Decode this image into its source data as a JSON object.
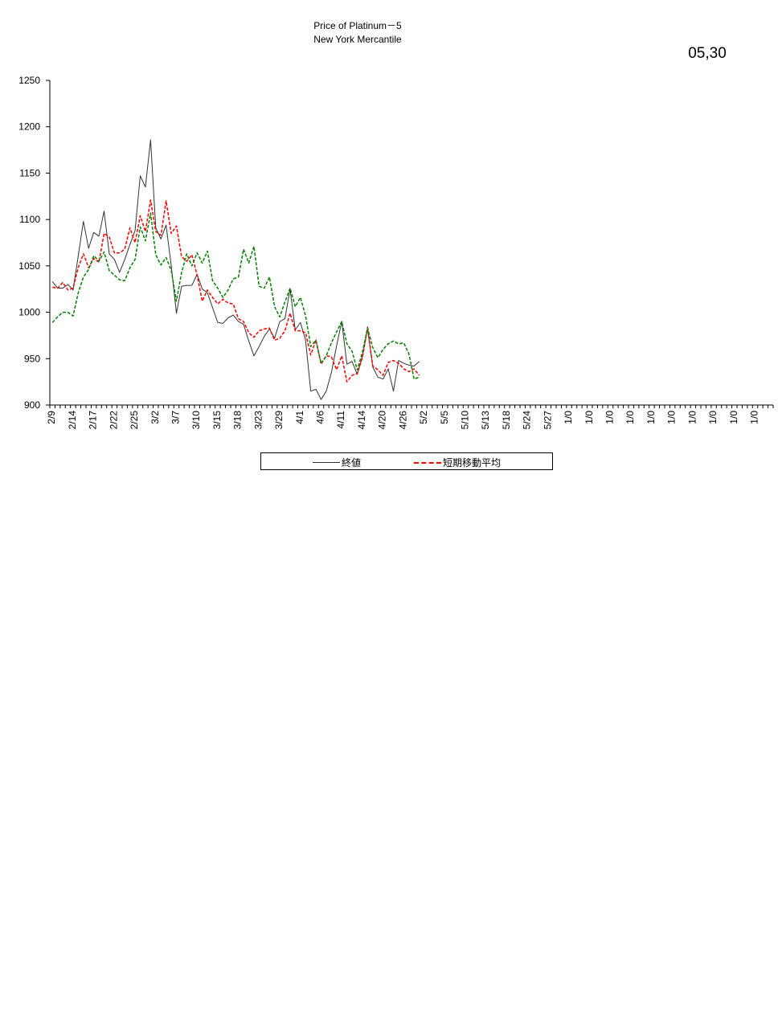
{
  "header": {
    "title_line1": "Price of Platinum－5",
    "title_line2": "New York Mercantile",
    "date_stamp": "05,30"
  },
  "chart_data": {
    "type": "line",
    "title": "Price of Platinum－5",
    "subtitle": "New York Mercantile",
    "xlabel": "",
    "ylabel": "",
    "ylim": [
      900,
      1250
    ],
    "yticks": [
      900,
      950,
      1000,
      1050,
      1100,
      1150,
      1200,
      1250
    ],
    "xticks": [
      "2/9",
      "2/14",
      "2/17",
      "2/22",
      "2/25",
      "3/2",
      "3/7",
      "3/10",
      "3/15",
      "3/18",
      "3/23",
      "3/29",
      "4/1",
      "4/6",
      "4/11",
      "4/14",
      "4/20",
      "4/26",
      "5/2",
      "5/5",
      "5/10",
      "5/13",
      "5/18",
      "5/24",
      "5/27",
      "1/0",
      "1/0",
      "1/0",
      "1/0",
      "1/0",
      "1/0",
      "1/0",
      "1/0",
      "1/0",
      "1/0"
    ],
    "slots": 140,
    "grid": false,
    "legend_position": "bottom",
    "series": [
      {
        "name": "終値",
        "color": "#333333",
        "dash": "none",
        "values": [
          1033,
          1026,
          1026,
          1030,
          1024,
          1061,
          1098,
          1069,
          1086,
          1082,
          1109,
          1063,
          1057,
          1043,
          1057,
          1073,
          1088,
          1147,
          1135,
          1186,
          1091,
          1079,
          1094,
          1050,
          999,
          1028,
          1029,
          1029,
          1041,
          1025,
          1021,
          1005,
          989,
          988,
          994,
          997,
          990,
          987,
          969,
          953,
          963,
          974,
          982,
          972,
          990,
          993,
          1025,
          981,
          989,
          970,
          915,
          917,
          906,
          915,
          935,
          964,
          990,
          944,
          947,
          933,
          953,
          982,
          941,
          930,
          928,
          939,
          915,
          948,
          945,
          943,
          942,
          947
        ],
        "legend_visible": true
      },
      {
        "name": "短期移動平均",
        "color": "#ff0000",
        "dash": "4,2",
        "values": [
          1027,
          1026,
          1032,
          1024,
          1026,
          1048,
          1063,
          1048,
          1058,
          1054,
          1085,
          1081,
          1064,
          1064,
          1068,
          1091,
          1075,
          1104,
          1087,
          1121,
          1087,
          1083,
          1120,
          1085,
          1093,
          1060,
          1055,
          1062,
          1040,
          1012,
          1024,
          1016,
          1009,
          1014,
          1010,
          1009,
          993,
          990,
          978,
          973,
          980,
          982,
          983,
          970,
          972,
          980,
          999,
          980,
          980,
          978,
          954,
          970,
          944,
          953,
          952,
          938,
          953,
          925,
          932,
          934,
          951,
          984,
          942,
          938,
          932,
          946,
          948,
          945,
          939,
          936,
          939,
          932
        ],
        "legend_visible": true
      },
      {
        "name": "",
        "color": "#008000",
        "dash": "4,2",
        "values": [
          989,
          995,
          1000,
          1000,
          996,
          1021,
          1038,
          1046,
          1061,
          1055,
          1065,
          1045,
          1040,
          1035,
          1034,
          1048,
          1057,
          1092,
          1077,
          1107,
          1062,
          1051,
          1059,
          1045,
          1012,
          1043,
          1063,
          1050,
          1064,
          1053,
          1066,
          1034,
          1026,
          1016,
          1024,
          1036,
          1038,
          1068,
          1053,
          1071,
          1028,
          1026,
          1038,
          1006,
          995,
          1011,
          1026,
          1006,
          1016,
          996,
          963,
          970,
          945,
          953,
          967,
          979,
          990,
          966,
          958,
          938,
          957,
          983,
          962,
          951,
          960,
          966,
          969,
          966,
          967,
          955,
          928,
          930
        ],
        "legend_visible": false
      }
    ]
  },
  "legend": {
    "close_label": "終値",
    "ma_label": "短期移動平均"
  }
}
